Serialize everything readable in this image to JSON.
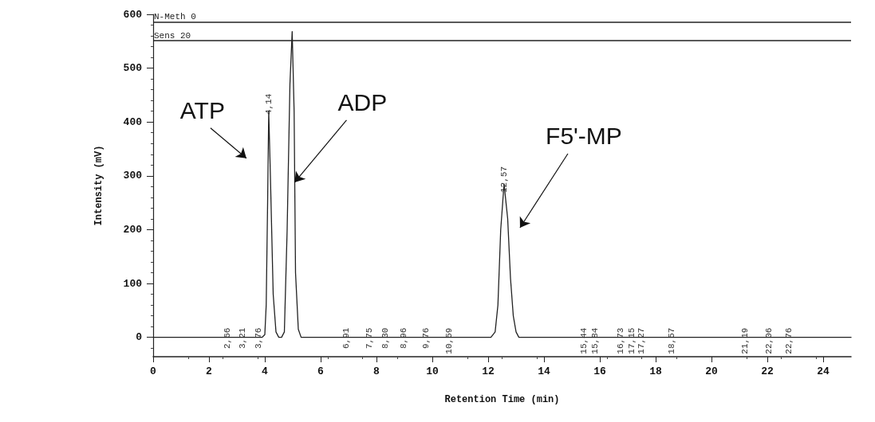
{
  "chart_data": {
    "type": "line",
    "xlabel": "Retention Time (min)",
    "ylabel": "Intensity (mV)",
    "x": [
      0,
      1,
      2,
      3,
      3.9,
      4.0,
      4.05,
      4.1,
      4.14,
      4.2,
      4.3,
      4.4,
      4.5,
      4.6,
      4.7,
      4.8,
      4.9,
      4.98,
      5.05,
      5.1,
      5.2,
      5.3,
      6,
      8,
      10,
      12,
      12.1,
      12.25,
      12.35,
      12.45,
      12.57,
      12.7,
      12.8,
      12.9,
      13.0,
      13.1,
      14,
      16,
      18,
      20,
      22,
      24,
      25
    ],
    "series": [
      {
        "color": "#222222",
        "values": [
          0,
          0,
          0,
          0,
          0,
          5,
          60,
          250,
          420,
          300,
          80,
          10,
          0,
          0,
          10,
          200,
          470,
          568,
          420,
          120,
          15,
          0,
          0,
          0,
          0,
          0,
          0,
          10,
          60,
          200,
          285,
          220,
          110,
          40,
          10,
          0,
          0,
          0,
          0,
          0,
          0,
          0,
          0
        ]
      }
    ],
    "xlim": [
      0,
      25
    ],
    "xticks": [
      0,
      2,
      4,
      6,
      8,
      10,
      12,
      14,
      16,
      18,
      20,
      22,
      24
    ],
    "ylim": [
      -36,
      600
    ],
    "yticks": [
      0,
      100,
      200,
      300,
      400,
      500,
      600
    ],
    "grid": false,
    "marker": "none",
    "line_style": "solid",
    "ref_lines": [
      {
        "axis": "y",
        "value": 586,
        "label": "N-Meth 0"
      },
      {
        "axis": "y",
        "value": 551,
        "label": "Sens 20"
      }
    ],
    "annotations": [
      {
        "text": "ATP",
        "x": 4.14,
        "y": 420
      },
      {
        "text": "ADP",
        "x": 5.07,
        "y": 288
      },
      {
        "text": "F5'-MP",
        "x": 12.57,
        "y": 285
      },
      {
        "text": "2,66",
        "x": 2.66,
        "y": 0
      },
      {
        "text": "3,21",
        "x": 3.21,
        "y": 0
      },
      {
        "text": "3,76",
        "x": 3.76,
        "y": 0
      },
      {
        "text": "4,14",
        "x": 4.14,
        "y": 420
      },
      {
        "text": "6,91",
        "x": 6.91,
        "y": 0
      },
      {
        "text": "7,75",
        "x": 7.75,
        "y": 0
      },
      {
        "text": "8,30",
        "x": 8.3,
        "y": 0
      },
      {
        "text": "8,96",
        "x": 8.96,
        "y": 0
      },
      {
        "text": "9,76",
        "x": 9.76,
        "y": 0
      },
      {
        "text": "10,59",
        "x": 10.59,
        "y": 0
      },
      {
        "text": "12,57",
        "x": 12.57,
        "y": 285
      },
      {
        "text": "15,44",
        "x": 15.44,
        "y": 0
      },
      {
        "text": "15,84",
        "x": 15.84,
        "y": 0
      },
      {
        "text": "16,73",
        "x": 16.73,
        "y": 0
      },
      {
        "text": "17,15",
        "x": 17.15,
        "y": 0
      },
      {
        "text": "17,27",
        "x": 17.27,
        "y": 0
      },
      {
        "text": "18,57",
        "x": 18.57,
        "y": 0
      },
      {
        "text": "21,19",
        "x": 21.19,
        "y": 0
      },
      {
        "text": "22,06",
        "x": 22.06,
        "y": 0
      },
      {
        "text": "22,76",
        "x": 22.76,
        "y": 0
      }
    ]
  }
}
